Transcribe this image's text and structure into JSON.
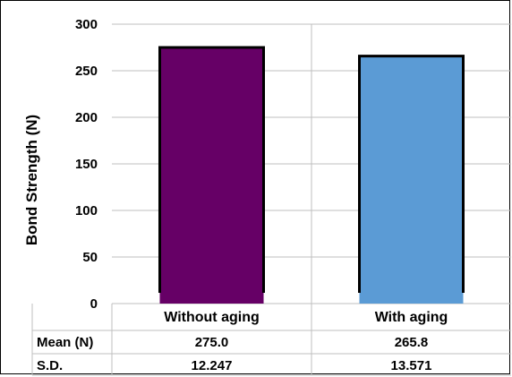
{
  "chart_data": {
    "type": "bar",
    "categories": [
      "Without aging",
      "With aging"
    ],
    "values": [
      275.0,
      265.8
    ],
    "bar_colors": [
      "#660066",
      "#5b9bd5"
    ],
    "title": "",
    "xlabel": "",
    "ylabel": "Bond Strength (N)",
    "ylim": [
      0,
      300
    ],
    "yticks": [
      0,
      50,
      100,
      150,
      200,
      250,
      300
    ],
    "grid": true,
    "legend": "none",
    "table": {
      "rows": [
        {
          "label": "Mean (N)",
          "values": [
            "275.0",
            "265.8"
          ]
        },
        {
          "label": "S.D.",
          "values": [
            "12.247",
            "13.571"
          ]
        }
      ]
    }
  }
}
